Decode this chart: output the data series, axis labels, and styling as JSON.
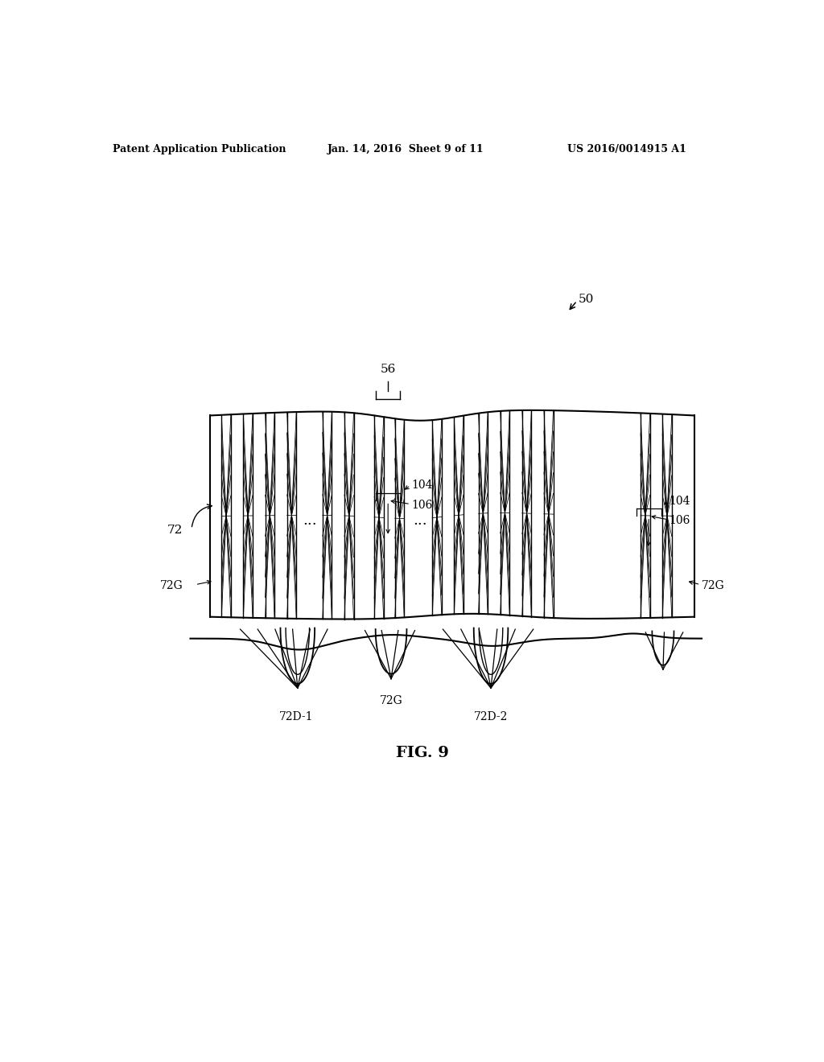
{
  "bg_color": "#ffffff",
  "line_color": "#000000",
  "header_left": "Patent Application Publication",
  "header_center": "Jan. 14, 2016  Sheet 9 of 11",
  "header_right": "US 2016/0014915 A1",
  "fig_label": "FIG. 9",
  "label_50": "50",
  "label_56": "56",
  "label_72": "72",
  "label_72G_left": "72G",
  "label_72G_center": "72G",
  "label_72G_right": "72G",
  "label_72D1": "72D-1",
  "label_72D2": "72D-2",
  "label_104_c": "104",
  "label_106_c": "106",
  "label_104_r": "104",
  "label_106_r": "106",
  "dots": "..."
}
